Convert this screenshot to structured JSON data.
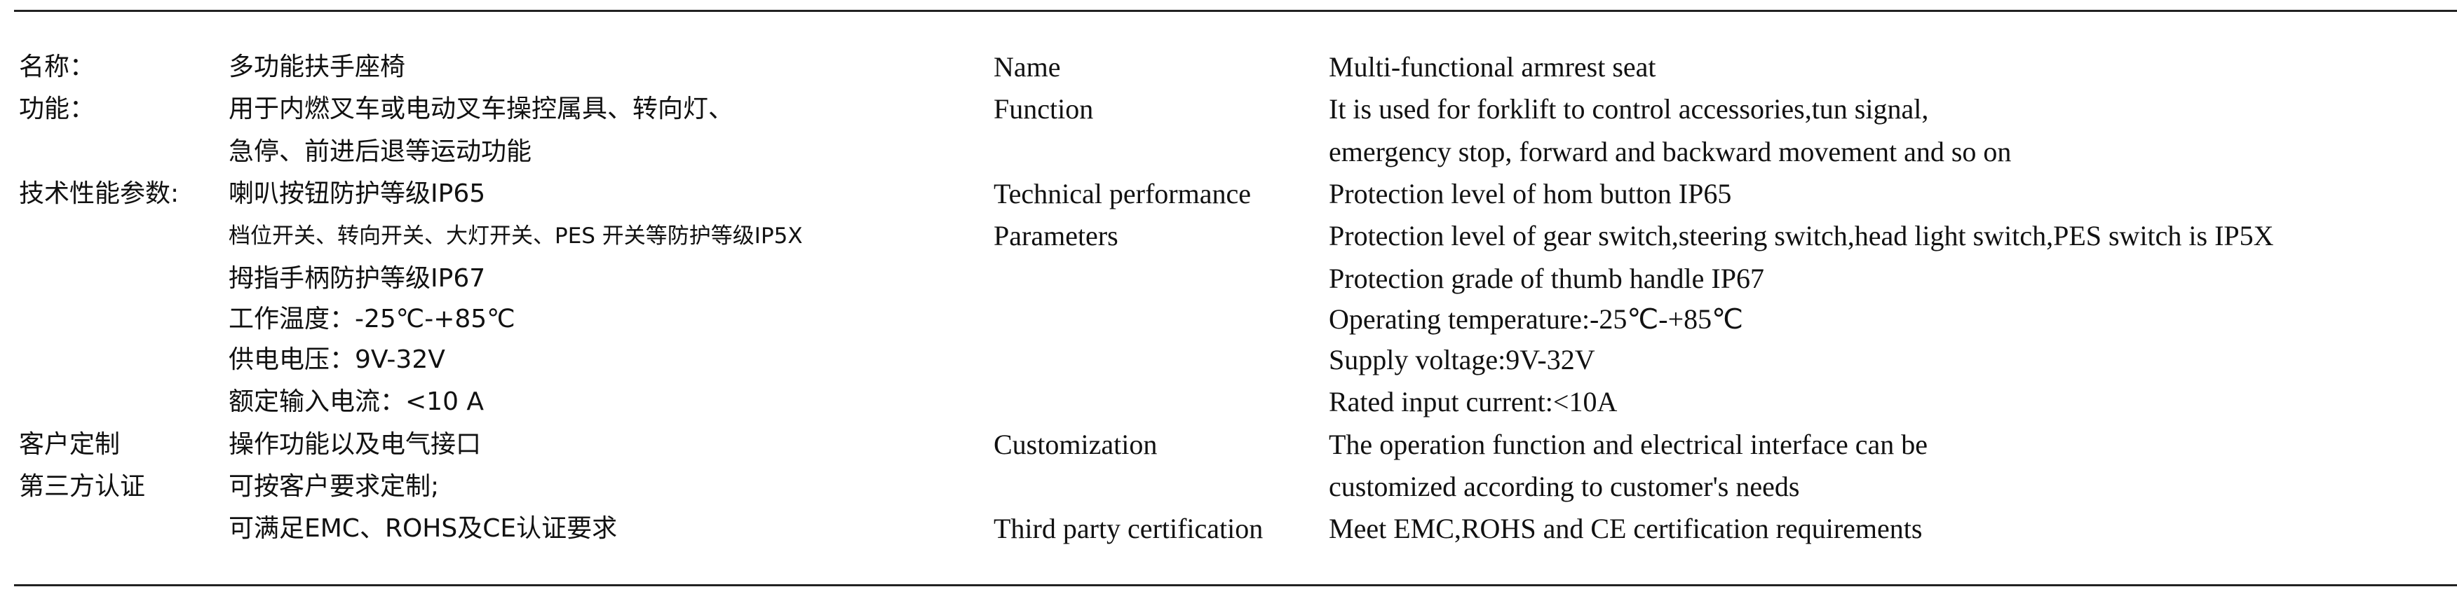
{
  "zh": {
    "rows": [
      {
        "label": "名称：",
        "lines": [
          "多功能扶手座椅"
        ]
      },
      {
        "label": "功能：",
        "lines": [
          "用于内燃叉车或电动叉车操控属具、转向灯、",
          "急停、前进后退等运动功能"
        ]
      },
      {
        "label": "技术性能参数:",
        "lines": [
          "喇叭按钮防护等级IP65",
          "档位开关、转向开关、大灯开关、PES 开关等防护等级IP5X",
          "拇指手柄防护等级IP67",
          "工作温度：-25℃-+85℃",
          "供电电压：9V-32V",
          "额定输入电流：<10 A"
        ]
      },
      {
        "label": "客户定制",
        "lines": [
          "操作功能以及电气接口",
          "可按客户要求定制;"
        ]
      },
      {
        "label": "第三方认证",
        "lines": [
          "可满足EMC、ROHS及CE认证要求"
        ]
      }
    ]
  },
  "en": {
    "labels": [
      "Name",
      "Function",
      "Technical performance",
      "Parameters",
      "Customization",
      "Third party certification"
    ],
    "lines": [
      "Multi-functional armrest seat",
      "It is used for forklift to control accessories,tun signal,",
      "emergency stop, forward and backward movement and so on",
      "Protection level of hom button IP65",
      "Protection level of gear switch,steering switch,head light switch,PES switch is IP5X",
      "Protection grade of thumb handle IP67",
      "Operating temperature:-25℃-+85℃",
      "Supply voltage:9V-32V",
      "Rated input current:<10A",
      "The operation function and electrical interface can be",
      "customized according to customer's needs",
      "Meet EMC,ROHS and CE certification requirements"
    ]
  }
}
